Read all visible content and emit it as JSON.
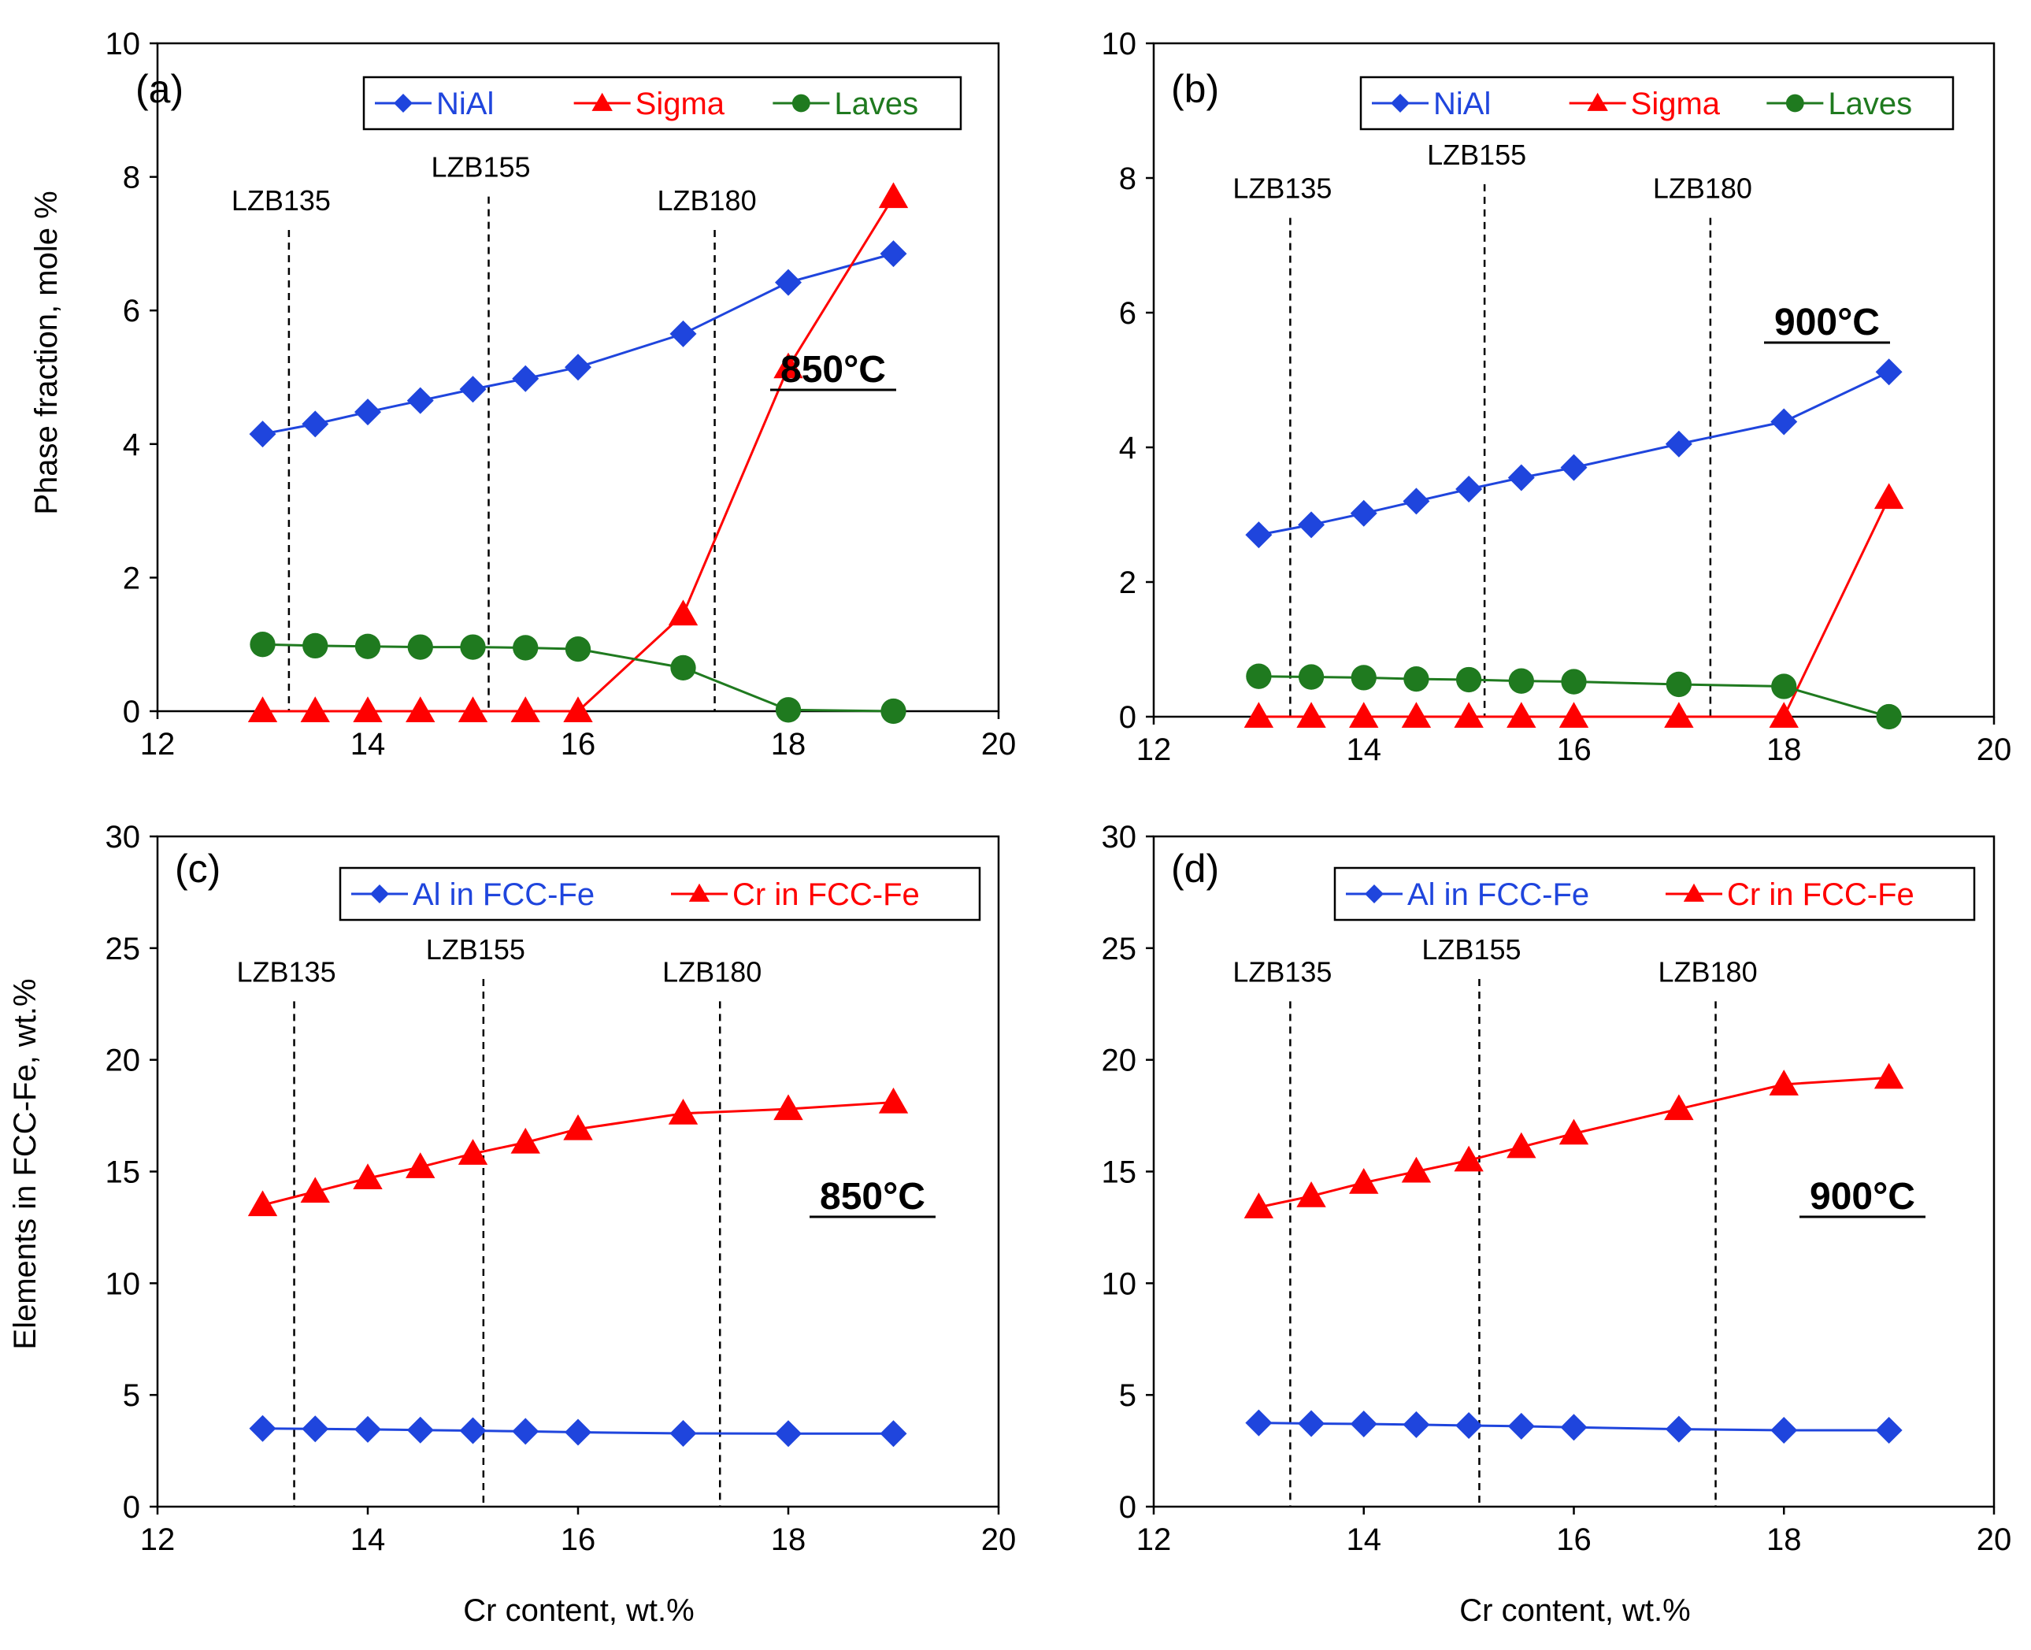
{
  "figure": {
    "x_label": "Cr content, wt.%",
    "y_label_top": "Phase fraction, mole %",
    "y_label_bottom": "Elements in FCC-Fe, wt.%"
  },
  "colors": {
    "blue": "#1F45DD",
    "red": "#FF0000",
    "green": "#1F7A1F",
    "black": "#000000"
  },
  "chart_data": [
    {
      "panel": "(a)",
      "type": "line",
      "temperature": "850°C",
      "xlim": [
        12,
        20
      ],
      "ylim": [
        0,
        10
      ],
      "xticks": [
        12,
        14,
        16,
        18,
        20
      ],
      "yticks": [
        0,
        2,
        4,
        6,
        8,
        10
      ],
      "ylabel": "Phase fraction, mole %",
      "xlabel": "",
      "legend": "top-right",
      "x": [
        13,
        13.5,
        14,
        14.5,
        15,
        15.5,
        16,
        17,
        18,
        19
      ],
      "series": [
        {
          "name": "NiAl",
          "color": "#1F45DD",
          "marker": "diamond",
          "values": [
            4.15,
            4.3,
            4.48,
            4.65,
            4.82,
            4.98,
            5.15,
            5.65,
            6.42,
            6.85
          ]
        },
        {
          "name": "Sigma",
          "color": "#FF0000",
          "marker": "triangle",
          "values": [
            0,
            0,
            0,
            0,
            0,
            0,
            0,
            1.45,
            5.15,
            7.7
          ]
        },
        {
          "name": "Laves",
          "color": "#1F7A1F",
          "marker": "circle",
          "values": [
            1.0,
            0.98,
            0.97,
            0.96,
            0.96,
            0.95,
            0.93,
            0.65,
            0.02,
            0
          ]
        }
      ],
      "vlines": [
        {
          "label": "LZB135",
          "x": 13.25,
          "label_y": 7.5
        },
        {
          "label": "LZB155",
          "x": 15.15,
          "label_y": 8.0
        },
        {
          "label": "LZB180",
          "x": 17.3,
          "label_y": 7.5
        }
      ]
    },
    {
      "panel": "(b)",
      "type": "line",
      "temperature": "900°C",
      "xlim": [
        12,
        20
      ],
      "ylim": [
        0,
        10
      ],
      "xticks": [
        12,
        14,
        16,
        18,
        20
      ],
      "yticks": [
        0,
        2,
        4,
        6,
        8,
        10
      ],
      "ylabel": "",
      "xlabel": "",
      "legend": "top-right",
      "x": [
        13,
        13.5,
        14,
        14.5,
        15,
        15.5,
        16,
        17,
        18,
        19
      ],
      "series": [
        {
          "name": "NiAl",
          "color": "#1F45DD",
          "marker": "diamond",
          "values": [
            2.7,
            2.85,
            3.02,
            3.2,
            3.38,
            3.55,
            3.7,
            4.05,
            4.38,
            5.12
          ]
        },
        {
          "name": "Sigma",
          "color": "#FF0000",
          "marker": "triangle",
          "values": [
            0,
            0,
            0,
            0,
            0,
            0,
            0,
            0,
            0,
            3.25
          ]
        },
        {
          "name": "Laves",
          "color": "#1F7A1F",
          "marker": "circle",
          "values": [
            0.6,
            0.59,
            0.58,
            0.56,
            0.55,
            0.53,
            0.52,
            0.48,
            0.45,
            0
          ]
        }
      ],
      "vlines": [
        {
          "label": "LZB135",
          "x": 13.3,
          "label_y": 7.7
        },
        {
          "label": "LZB155",
          "x": 15.15,
          "label_y": 8.2
        },
        {
          "label": "LZB180",
          "x": 17.3,
          "label_y": 7.7
        }
      ]
    },
    {
      "panel": "(c)",
      "type": "line",
      "temperature": "850°C",
      "xlim": [
        12,
        20
      ],
      "ylim": [
        0,
        30
      ],
      "xticks": [
        12,
        14,
        16,
        18,
        20
      ],
      "yticks": [
        0,
        5,
        10,
        15,
        20,
        25,
        30
      ],
      "ylabel": "Elements in FCC-Fe, wt.%",
      "xlabel": "Cr content, wt.%",
      "legend": "top-right",
      "x": [
        13,
        13.5,
        14,
        14.5,
        15,
        15.5,
        16,
        17,
        18,
        19
      ],
      "series": [
        {
          "name": "Al in FCC-Fe",
          "color": "#1F45DD",
          "marker": "diamond",
          "values": [
            3.5,
            3.48,
            3.46,
            3.43,
            3.4,
            3.37,
            3.33,
            3.28,
            3.27,
            3.27
          ]
        },
        {
          "name": "Cr in FCC-Fe",
          "color": "#FF0000",
          "marker": "triangle",
          "values": [
            13.5,
            14.1,
            14.7,
            15.2,
            15.8,
            16.3,
            16.9,
            17.6,
            17.8,
            18.1
          ]
        }
      ],
      "vlines": [
        {
          "label": "LZB135",
          "x": 13.3,
          "label_y": 23.5
        },
        {
          "label": "LZB155",
          "x": 15.1,
          "label_y": 24.5
        },
        {
          "label": "LZB180",
          "x": 17.35,
          "label_y": 23.5
        }
      ]
    },
    {
      "panel": "(d)",
      "type": "line",
      "temperature": "900°C",
      "xlim": [
        12,
        20
      ],
      "ylim": [
        0,
        30
      ],
      "xticks": [
        12,
        14,
        16,
        18,
        20
      ],
      "yticks": [
        0,
        5,
        10,
        15,
        20,
        25,
        30
      ],
      "ylabel": "",
      "xlabel": "Cr content, wt.%",
      "legend": "top-right",
      "x": [
        13,
        13.5,
        14,
        14.5,
        15,
        15.5,
        16,
        17,
        18,
        19
      ],
      "series": [
        {
          "name": "Al in FCC-Fe",
          "color": "#1F45DD",
          "marker": "diamond",
          "values": [
            3.75,
            3.72,
            3.7,
            3.67,
            3.63,
            3.6,
            3.55,
            3.47,
            3.42,
            3.42
          ]
        },
        {
          "name": "Cr in FCC-Fe",
          "color": "#FF0000",
          "marker": "triangle",
          "values": [
            13.4,
            13.9,
            14.5,
            15.0,
            15.5,
            16.1,
            16.7,
            17.8,
            18.9,
            19.2
          ]
        }
      ],
      "vlines": [
        {
          "label": "LZB135",
          "x": 13.3,
          "label_y": 23.5
        },
        {
          "label": "LZB155",
          "x": 15.1,
          "label_y": 24.5
        },
        {
          "label": "LZB180",
          "x": 17.35,
          "label_y": 23.5
        }
      ]
    }
  ]
}
